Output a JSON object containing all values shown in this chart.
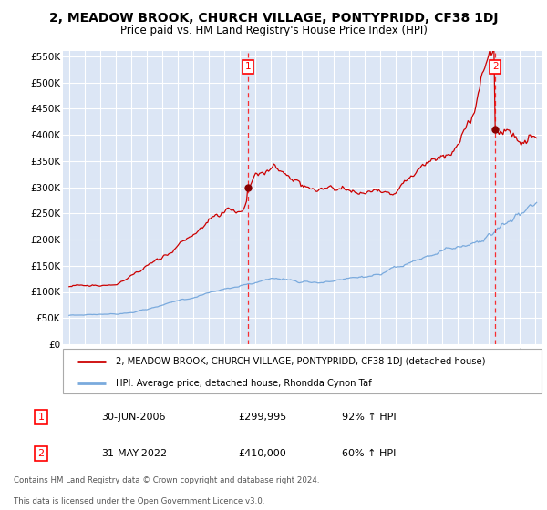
{
  "title": "2, MEADOW BROOK, CHURCH VILLAGE, PONTYPRIDD, CF38 1DJ",
  "subtitle": "Price paid vs. HM Land Registry's House Price Index (HPI)",
  "title_fontsize": 10.5,
  "subtitle_fontsize": 9,
  "background_color": "#dce6f5",
  "red_line_color": "#cc0000",
  "blue_line_color": "#7aaadd",
  "marker_color": "#aa0000",
  "sale1_date": 2006.5,
  "sale1_price": 299995,
  "sale1_label": "1",
  "sale2_date": 2022.42,
  "sale2_price": 410000,
  "sale2_label": "2",
  "ylim_min": 0,
  "ylim_max": 560000,
  "yticks": [
    0,
    50000,
    100000,
    150000,
    200000,
    250000,
    300000,
    350000,
    400000,
    450000,
    500000,
    550000
  ],
  "ytick_labels": [
    "£0",
    "£50K",
    "£100K",
    "£150K",
    "£200K",
    "£250K",
    "£300K",
    "£350K",
    "£400K",
    "£450K",
    "£500K",
    "£550K"
  ],
  "xlim_min": 1994.6,
  "xlim_max": 2025.4,
  "legend_label_red": "2, MEADOW BROOK, CHURCH VILLAGE, PONTYPRIDD, CF38 1DJ (detached house)",
  "legend_label_blue": "HPI: Average price, detached house, Rhondda Cynon Taf",
  "footer1": "Contains HM Land Registry data © Crown copyright and database right 2024.",
  "footer2": "This data is licensed under the Open Government Licence v3.0.",
  "table_row1_label": "1",
  "table_row1_date": "30-JUN-2006",
  "table_row1_price": "£299,995",
  "table_row1_hpi": "92% ↑ HPI",
  "table_row2_label": "2",
  "table_row2_date": "31-MAY-2022",
  "table_row2_price": "£410,000",
  "table_row2_hpi": "60% ↑ HPI"
}
